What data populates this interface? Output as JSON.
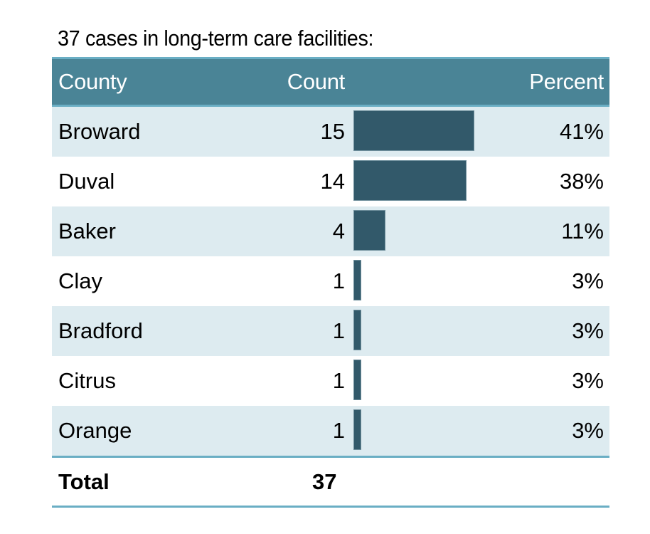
{
  "title": "37 cases in long-term care facilities:",
  "colors": {
    "header_bg": "#4a8496",
    "border": "#6aaec4",
    "alt_row": "#ddebf0",
    "bar": "#32596a"
  },
  "chart_data": {
    "type": "table",
    "title": "37 cases in long-term care facilities:",
    "columns": [
      "County",
      "Count",
      "Percent"
    ],
    "rows": [
      {
        "county": "Broward",
        "count": 15,
        "count_label": "15",
        "percent": "41%"
      },
      {
        "county": "Duval",
        "count": 14,
        "count_label": "14",
        "percent": "38%"
      },
      {
        "county": "Baker",
        "count": 4,
        "count_label": "4",
        "percent": "11%"
      },
      {
        "county": "Clay",
        "count": 1,
        "count_label": "1",
        "percent": "3%"
      },
      {
        "county": "Bradford",
        "count": 1,
        "count_label": "1",
        "percent": "3%"
      },
      {
        "county": "Citrus",
        "count": 1,
        "count_label": "1",
        "percent": "3%"
      },
      {
        "county": "Orange",
        "count": 1,
        "count_label": "1",
        "percent": "3%"
      }
    ],
    "total": {
      "label": "Total",
      "count": "37"
    },
    "bar_max": 15
  }
}
